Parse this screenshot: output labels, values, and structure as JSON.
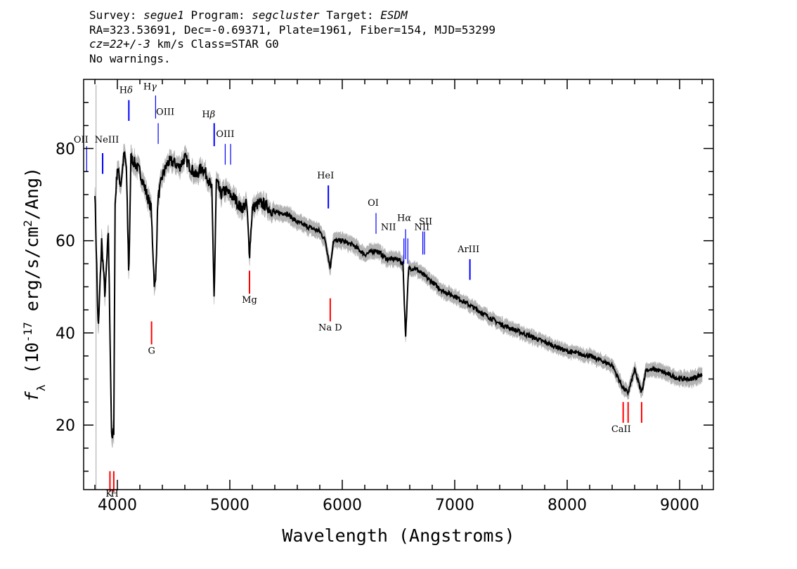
{
  "header": {
    "survey_label": "Survey:",
    "survey": "segue1",
    "program_label": "Program:",
    "program": "segcluster",
    "target_label": "Target:",
    "target": "ESDM",
    "line2": "RA=323.53691, Dec=-0.69371, Plate=1961, Fiber=154, MJD=53299",
    "cz": "cz=22+/-3",
    "cz_units": "km/s Class=STAR G0",
    "warnings": "No warnings."
  },
  "chart_data": {
    "type": "line",
    "xlabel": "Wavelength (Angstroms)",
    "ylabel": "f_λ (10^-17 erg/s/cm^2/Ang)",
    "xlim": [
      3700,
      9300
    ],
    "ylim": [
      6,
      95
    ],
    "x_ticks": [
      4000,
      5000,
      6000,
      7000,
      8000,
      9000
    ],
    "y_ticks": [
      20,
      40,
      60,
      80
    ],
    "grid": false,
    "series": [
      {
        "color": "#000000",
        "x": [
          3800,
          3830,
          3860,
          3890,
          3920,
          3950,
          3968,
          3980,
          4000,
          4030,
          4060,
          4080,
          4102,
          4120,
          4150,
          4200,
          4250,
          4300,
          4330,
          4340,
          4360,
          4400,
          4450,
          4500,
          4550,
          4600,
          4650,
          4700,
          4750,
          4800,
          4840,
          4861,
          4880,
          4920,
          4960,
          5000,
          5050,
          5100,
          5150,
          5175,
          5200,
          5250,
          5300,
          5350,
          5400,
          5450,
          5500,
          5600,
          5700,
          5800,
          5850,
          5893,
          5920,
          6000,
          6100,
          6200,
          6300,
          6400,
          6500,
          6540,
          6563,
          6590,
          6650,
          6700,
          6800,
          6900,
          7000,
          7200,
          7400,
          7600,
          7800,
          8000,
          8200,
          8400,
          8498,
          8542,
          8600,
          8662,
          8700,
          8800,
          9000,
          9100,
          9200
        ],
        "values": [
          71,
          40,
          60,
          48,
          62,
          16,
          19,
          68,
          76,
          72,
          79,
          76,
          52,
          78,
          77,
          75,
          71,
          67,
          50,
          51,
          69,
          74,
          77,
          77,
          76,
          78,
          76,
          74,
          76,
          74,
          71,
          47,
          73,
          70,
          71,
          70,
          69,
          67,
          68,
          57,
          67,
          68,
          68,
          67,
          66,
          66,
          66,
          64,
          63,
          62,
          60,
          54,
          60,
          60,
          59,
          57,
          58,
          56,
          56,
          55,
          39,
          54,
          54,
          53,
          51,
          49,
          48,
          45,
          42,
          40,
          38,
          36,
          35,
          33,
          28,
          27,
          32,
          27,
          32,
          32,
          30,
          30,
          31
        ]
      },
      {
        "color": "#b3b3b3",
        "label": "error band (±1σ)",
        "x": [
          3800,
          4000,
          4500,
          5000,
          5500,
          6000,
          6500,
          7000,
          7500,
          8000,
          8500,
          9000,
          9200
        ],
        "values": [
          1.8,
          1.6,
          1.4,
          1.4,
          1.3,
          1.3,
          1.2,
          1.1,
          1.1,
          1.0,
          1.1,
          1.2,
          1.3
        ]
      }
    ],
    "emission_lines": [
      {
        "label": "OII",
        "wavelength": 3727
      },
      {
        "label": "NeIII",
        "wavelength": 3869
      },
      {
        "label": "Hδ",
        "wavelength": 4102
      },
      {
        "label": "Hγ",
        "wavelength": 4340
      },
      {
        "label": "OIII",
        "wavelength": 4363
      },
      {
        "label": "Hβ",
        "wavelength": 4861
      },
      {
        "label": "OIII",
        "wavelength": 4959
      },
      {
        "label": "OIII",
        "wavelength": 5007
      },
      {
        "label": "HeI",
        "wavelength": 5876
      },
      {
        "label": "OI",
        "wavelength": 6300
      },
      {
        "label": "NII",
        "wavelength": 6548
      },
      {
        "label": "Hα",
        "wavelength": 6563
      },
      {
        "label": "NII",
        "wavelength": 6583
      },
      {
        "label": "SII",
        "wavelength": 6716
      },
      {
        "label": "SII",
        "wavelength": 6731
      },
      {
        "label": "ArIII",
        "wavelength": 7135
      }
    ],
    "absorption_lines": [
      {
        "label": "K",
        "wavelength": 3934
      },
      {
        "label": "H",
        "wavelength": 3968
      },
      {
        "label": "G",
        "wavelength": 4304
      },
      {
        "label": "Mg",
        "wavelength": 5175
      },
      {
        "label": "Na D",
        "wavelength": 5893
      },
      {
        "label": "CaII",
        "wavelength": 8498
      },
      {
        "label": "CaII",
        "wavelength": 8542
      },
      {
        "label": "CaII",
        "wavelength": 8662
      }
    ],
    "emission_color": "#0000ff",
    "absorption_color": "#ff0000"
  }
}
